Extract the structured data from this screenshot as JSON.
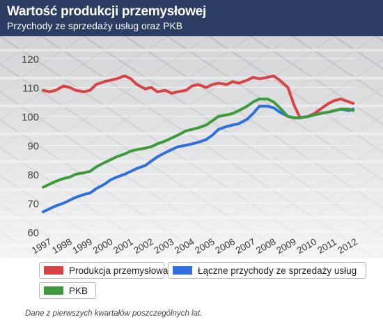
{
  "header": {
    "title": "Wartość produkcji przemysłowej",
    "subtitle": "Przychody ze sprzedaży usług oraz PKB",
    "background": "#2b3d63"
  },
  "legend": {
    "items": [
      {
        "label": "Produkcja przemysłowa",
        "color": "#d94343"
      },
      {
        "label": "Łączne przychody ze sprzedaży usług",
        "color": "#2f6fde"
      },
      {
        "label": "PKB",
        "color": "#3f9a3c"
      }
    ]
  },
  "footnote": "Dane z pierwszych kwartałów poszczególnych lat.",
  "chart_data": {
    "type": "line",
    "title": "Wartość produkcji przemysłowej",
    "subtitle": "Przychody ze sprzedaży usług oraz PKB",
    "xlabel": "",
    "ylabel": "",
    "ylim": [
      60,
      120
    ],
    "yticks": [
      60,
      70,
      80,
      90,
      100,
      110,
      120
    ],
    "xlim": [
      1997,
      2012.3
    ],
    "xticks": [
      1997,
      1998,
      1999,
      2000,
      2001,
      2002,
      2003,
      2004,
      2005,
      2006,
      2007,
      2008,
      2009,
      2010,
      2011,
      2012
    ],
    "grid": "horizontal",
    "legend_position": "bottom",
    "series": [
      {
        "name": "Produkcja przemysłowa",
        "color": "#d94343",
        "x": [
          1997,
          1997.3,
          1997.6,
          1998,
          1998.3,
          1998.6,
          1999,
          1999.3,
          1999.6,
          2000,
          2000.3,
          2000.6,
          2001,
          2001.3,
          2001.6,
          2002,
          2002.3,
          2002.6,
          2003,
          2003.3,
          2003.6,
          2004,
          2004.3,
          2004.6,
          2005,
          2005.3,
          2005.6,
          2006,
          2006.3,
          2006.6,
          2007,
          2007.3,
          2007.6,
          2008,
          2008.3,
          2008.6,
          2009,
          2009.3,
          2009.6,
          2010,
          2010.3,
          2010.6,
          2011,
          2011.3,
          2011.6,
          2012,
          2012.2
        ],
        "values": [
          109,
          108.5,
          109,
          110.5,
          110,
          109,
          108.5,
          109,
          111,
          112,
          112.5,
          113,
          114,
          113,
          111,
          109.5,
          110,
          108.5,
          109,
          108,
          108.5,
          109,
          110.5,
          111,
          110,
          111,
          111.5,
          111,
          112,
          111.5,
          112.5,
          113.5,
          113,
          113.5,
          114,
          112.5,
          110,
          104,
          99.5,
          100,
          101,
          102.5,
          104.5,
          105.5,
          106,
          105,
          104.5
        ]
      },
      {
        "name": "Łączne przychody ze sprzedaży usług",
        "color": "#2f6fde",
        "x": [
          1997,
          1997.3,
          1997.6,
          1998,
          1998.3,
          1998.6,
          1999,
          1999.3,
          1999.6,
          2000,
          2000.3,
          2000.6,
          2001,
          2001.3,
          2001.6,
          2002,
          2002.3,
          2002.6,
          2003,
          2003.3,
          2003.6,
          2004,
          2004.3,
          2004.6,
          2005,
          2005.3,
          2005.6,
          2006,
          2006.3,
          2006.6,
          2007,
          2007.3,
          2007.6,
          2008,
          2008.3,
          2008.6,
          2009,
          2009.3,
          2009.6,
          2010,
          2010.3,
          2010.6,
          2011,
          2011.3,
          2011.6,
          2012,
          2012.2
        ],
        "values": [
          67,
          68,
          69,
          70,
          71,
          72,
          73,
          73.5,
          75,
          76.5,
          78,
          79,
          80,
          81,
          82,
          83,
          84.5,
          86,
          87.5,
          88.5,
          89.5,
          90,
          90.5,
          91,
          92,
          93.5,
          95.5,
          96.5,
          97,
          97.5,
          99,
          101,
          103.5,
          103.5,
          103,
          101.5,
          100,
          99.5,
          99.5,
          100,
          100.5,
          101,
          101.5,
          102,
          102.5,
          102,
          102.5
        ]
      },
      {
        "name": "PKB",
        "color": "#3f9a3c",
        "x": [
          1997,
          1997.3,
          1997.6,
          1998,
          1998.3,
          1998.6,
          1999,
          1999.3,
          1999.6,
          2000,
          2000.3,
          2000.6,
          2001,
          2001.3,
          2001.6,
          2002,
          2002.3,
          2002.6,
          2003,
          2003.3,
          2003.6,
          2004,
          2004.3,
          2004.6,
          2005,
          2005.3,
          2005.6,
          2006,
          2006.3,
          2006.6,
          2007,
          2007.3,
          2007.6,
          2008,
          2008.3,
          2008.6,
          2009,
          2009.3,
          2009.6,
          2010,
          2010.3,
          2010.6,
          2011,
          2011.3,
          2011.6,
          2012,
          2012.2
        ],
        "values": [
          75.5,
          76.5,
          77.5,
          78.5,
          79,
          80,
          80.5,
          81,
          82.5,
          84,
          85,
          86,
          87,
          88,
          88.5,
          89,
          89.5,
          90.5,
          91.5,
          92.5,
          93.5,
          95,
          95.5,
          96,
          97,
          98.5,
          100,
          100.5,
          101,
          102,
          103.5,
          105,
          106,
          106,
          105,
          103,
          100,
          99.5,
          99.5,
          100,
          100.5,
          101,
          101.5,
          102,
          102.5,
          102.5,
          102
        ]
      }
    ]
  }
}
